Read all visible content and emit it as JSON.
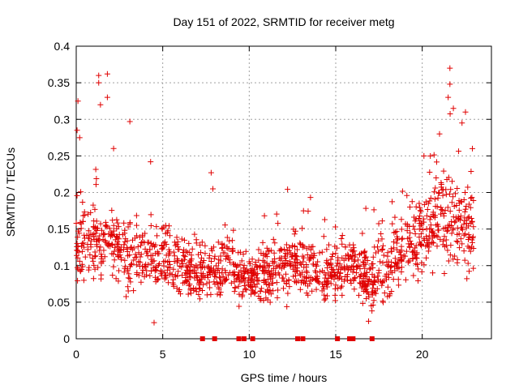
{
  "chart_data": {
    "type": "scatter",
    "title": "Day 151 of 2022, SRMTID for receiver metg",
    "xlabel": "GPS time / hours",
    "ylabel": "SRMTID / TECUs",
    "xlim": [
      0,
      24
    ],
    "ylim": [
      0,
      0.4
    ],
    "xticks": [
      0,
      5,
      10,
      15,
      20
    ],
    "xtick_labels": [
      "0",
      "5",
      "10",
      "15",
      "20"
    ],
    "yticks": [
      0,
      0.05,
      0.1,
      0.15,
      0.2,
      0.25,
      0.3,
      0.35,
      0.4
    ],
    "ytick_labels": [
      "0",
      "0.05",
      "0.1",
      "0.15",
      "0.2",
      "0.25",
      "0.3",
      "0.35",
      "0.4"
    ],
    "grid": true,
    "marker_color": "#e00000",
    "marker": "plus",
    "data_gaps_at_zero_hours": [
      7.3,
      8.0,
      9.4,
      9.7,
      10.2,
      12.8,
      13.1,
      15.1,
      15.8,
      16.0,
      17.1
    ],
    "envelope": {
      "hours": [
        0,
        1,
        2,
        3,
        4,
        5,
        6,
        7,
        8,
        9,
        10,
        11,
        12,
        13,
        14,
        15,
        16,
        17,
        18,
        19,
        20,
        21,
        22,
        23
      ],
      "median": [
        0.13,
        0.13,
        0.14,
        0.12,
        0.11,
        0.11,
        0.1,
        0.09,
        0.09,
        0.1,
        0.08,
        0.09,
        0.1,
        0.1,
        0.09,
        0.09,
        0.1,
        0.08,
        0.1,
        0.12,
        0.14,
        0.17,
        0.16,
        0.15
      ],
      "spread": [
        0.06,
        0.05,
        0.06,
        0.05,
        0.04,
        0.04,
        0.04,
        0.04,
        0.04,
        0.04,
        0.03,
        0.04,
        0.04,
        0.04,
        0.04,
        0.04,
        0.04,
        0.04,
        0.04,
        0.05,
        0.06,
        0.06,
        0.06,
        0.06
      ]
    },
    "notable_points": [
      {
        "x": 0.1,
        "y": 0.325
      },
      {
        "x": 0.05,
        "y": 0.285
      },
      {
        "x": 0.2,
        "y": 0.275
      },
      {
        "x": 1.3,
        "y": 0.36
      },
      {
        "x": 1.3,
        "y": 0.35
      },
      {
        "x": 1.8,
        "y": 0.362
      },
      {
        "x": 1.8,
        "y": 0.33
      },
      {
        "x": 1.4,
        "y": 0.32
      },
      {
        "x": 3.1,
        "y": 0.297
      },
      {
        "x": 4.3,
        "y": 0.242
      },
      {
        "x": 7.8,
        "y": 0.227
      },
      {
        "x": 7.9,
        "y": 0.205
      },
      {
        "x": 21.6,
        "y": 0.37
      },
      {
        "x": 21.6,
        "y": 0.348
      },
      {
        "x": 21.5,
        "y": 0.33
      },
      {
        "x": 21.8,
        "y": 0.315
      },
      {
        "x": 22.5,
        "y": 0.31
      },
      {
        "x": 22.3,
        "y": 0.295
      },
      {
        "x": 4.5,
        "y": 0.022
      },
      {
        "x": 16.9,
        "y": 0.024
      },
      {
        "x": 21.0,
        "y": 0.28
      },
      {
        "x": 22.9,
        "y": 0.26
      },
      {
        "x": 20.1,
        "y": 0.25
      }
    ]
  }
}
